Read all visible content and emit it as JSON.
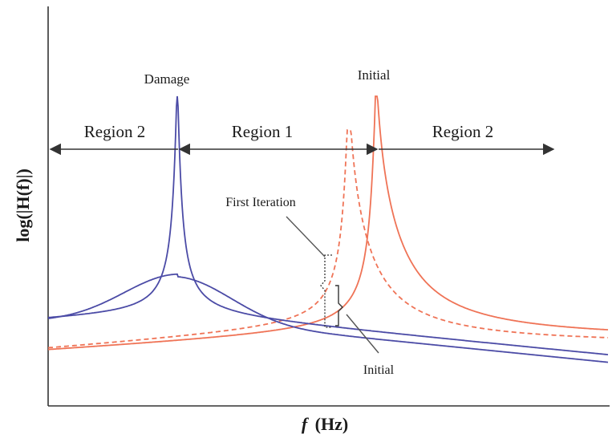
{
  "labels": {
    "damage": "Damage",
    "initial_peak": "Initial",
    "region_left": "Region 2",
    "region_middle": "Region 1",
    "region_right": "Region 2",
    "first_iteration": "First Iteration",
    "initial_bottom": "Initial",
    "y_axis": "log(|H(f)|)",
    "x_axis": "(Hz)",
    "x_axis_symbol": "f"
  },
  "colors": {
    "damage_curves": "#4b4ba6",
    "initial_curves": "#ef7356",
    "axes": "#333333",
    "arrows": "#333333"
  },
  "curves": [
    {
      "id": "damage-frf-sharp",
      "color": "damage",
      "style": "solid"
    },
    {
      "id": "damage-frf-damped",
      "color": "damage",
      "style": "solid"
    },
    {
      "id": "initial-frf",
      "color": "initial",
      "style": "solid"
    },
    {
      "id": "first-iteration-frf",
      "color": "initial",
      "style": "dashed"
    }
  ]
}
